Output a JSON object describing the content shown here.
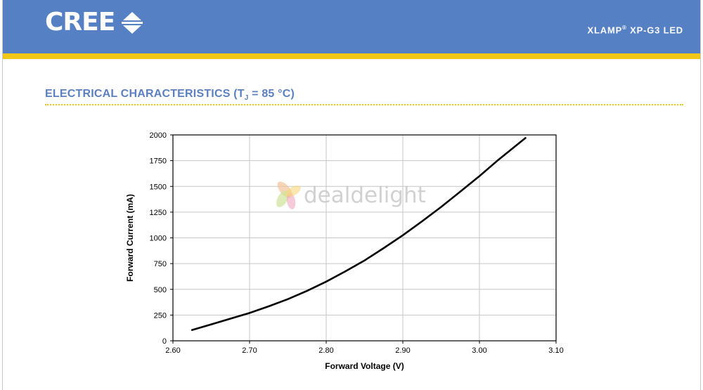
{
  "header": {
    "brand": "CREE",
    "product_name": "XLAMP",
    "product_registered": "®",
    "product_model": "XP-G3 LED"
  },
  "section": {
    "title_prefix": "ELECTRICAL CHARACTERISTICS (T",
    "title_subscript": "J",
    "title_suffix": " = 85 °C)"
  },
  "watermark": {
    "text": "dealdelight"
  },
  "colors": {
    "header_blue": "#5580c4",
    "stripe_yellow": "#f2c718",
    "title_blue": "#5b80c0",
    "curve": "#000000"
  },
  "chart_data": {
    "type": "line",
    "title": "",
    "xlabel": "Forward Voltage (V)",
    "ylabel": "Forward Current (mA)",
    "xlim": [
      2.6,
      3.1
    ],
    "ylim": [
      0,
      2000
    ],
    "x_ticks": [
      "2.60",
      "2.70",
      "2.80",
      "2.90",
      "3.00",
      "3.10"
    ],
    "y_ticks": [
      "0",
      "250",
      "500",
      "750",
      "1000",
      "1250",
      "1500",
      "1750",
      "2000"
    ],
    "grid": true,
    "legend": "none",
    "series": [
      {
        "x": [
          2.625,
          2.65,
          2.675,
          2.7,
          2.725,
          2.75,
          2.775,
          2.8,
          2.825,
          2.85,
          2.875,
          2.9,
          2.925,
          2.95,
          2.975,
          3.0,
          3.025,
          3.06
        ],
        "y": [
          105,
          160,
          215,
          270,
          335,
          405,
          485,
          575,
          675,
          780,
          900,
          1025,
          1160,
          1300,
          1450,
          1600,
          1760,
          1970
        ]
      }
    ]
  }
}
